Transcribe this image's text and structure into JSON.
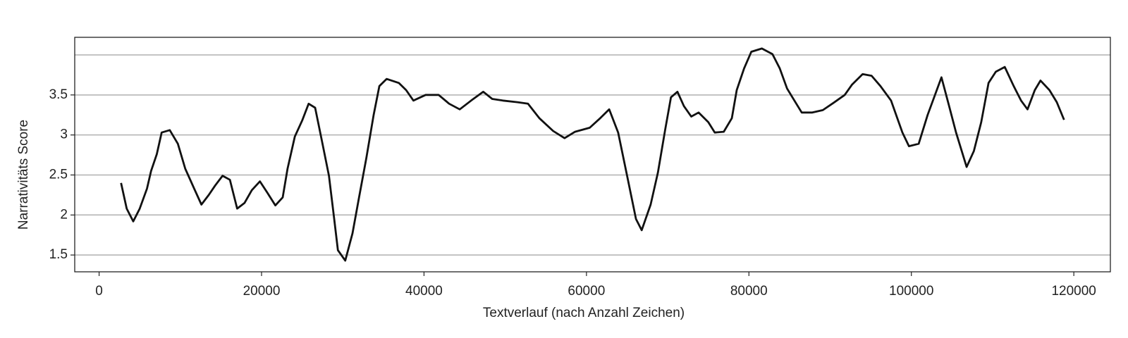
{
  "chart_data": {
    "type": "line",
    "xlabel": "Textverlauf (nach Anzahl Zeichen)",
    "ylabel": "Narrativitäts Score",
    "xlim": [
      -3000,
      124500
    ],
    "ylim": [
      1.29,
      4.22
    ],
    "xticks": [
      0,
      20000,
      40000,
      60000,
      80000,
      100000,
      120000
    ],
    "yticks": [
      1.5,
      2.0,
      2.5,
      3.0,
      3.5
    ],
    "ygrid": [
      1.5,
      2.0,
      2.5,
      3.0,
      3.5,
      4.0
    ],
    "grid": true,
    "color": "#111111",
    "x": [
      2700,
      3400,
      4200,
      5000,
      5900,
      6400,
      7100,
      7700,
      8700,
      9700,
      10600,
      11700,
      12600,
      13500,
      14300,
      15200,
      16100,
      17000,
      17900,
      18800,
      19800,
      20700,
      21700,
      22600,
      23200,
      24100,
      25000,
      25800,
      26600,
      27400,
      28300,
      28900,
      29400,
      30300,
      31200,
      32000,
      32900,
      33800,
      34500,
      35400,
      36900,
      37800,
      38700,
      40200,
      41800,
      43100,
      44400,
      45800,
      47300,
      48400,
      49700,
      51500,
      52800,
      54200,
      55900,
      57300,
      58600,
      60400,
      61700,
      62800,
      63900,
      65000,
      66100,
      66800,
      67900,
      68800,
      69700,
      70400,
      71200,
      72000,
      72900,
      73800,
      75000,
      75800,
      76900,
      77900,
      78500,
      79400,
      80300,
      81600,
      82900,
      83800,
      84700,
      85600,
      86500,
      87800,
      89100,
      90400,
      91800,
      92700,
      94000,
      95100,
      96200,
      97500,
      98900,
      99700,
      100900,
      102000,
      102800,
      103700,
      104600,
      105500,
      106800,
      107700,
      108600,
      109500,
      110400,
      111500,
      112600,
      113500,
      114300,
      115200,
      115900,
      117000,
      117900,
      118800
    ],
    "values": [
      2.4,
      2.08,
      1.92,
      2.08,
      2.33,
      2.55,
      2.76,
      3.03,
      3.06,
      2.89,
      2.58,
      2.33,
      2.13,
      2.25,
      2.37,
      2.49,
      2.44,
      2.08,
      2.15,
      2.31,
      2.42,
      2.28,
      2.12,
      2.22,
      2.58,
      2.98,
      3.18,
      3.39,
      3.34,
      2.94,
      2.49,
      1.99,
      1.56,
      1.43,
      1.77,
      2.22,
      2.71,
      3.25,
      3.61,
      3.7,
      3.65,
      3.56,
      3.43,
      3.5,
      3.5,
      3.39,
      3.32,
      3.43,
      3.54,
      3.45,
      3.43,
      3.41,
      3.39,
      3.21,
      3.05,
      2.96,
      3.04,
      3.09,
      3.21,
      3.32,
      3.03,
      2.49,
      1.95,
      1.81,
      2.13,
      2.53,
      3.07,
      3.47,
      3.54,
      3.36,
      3.23,
      3.28,
      3.16,
      3.03,
      3.04,
      3.21,
      3.56,
      3.83,
      4.04,
      4.08,
      4.01,
      3.83,
      3.58,
      3.43,
      3.28,
      3.28,
      3.31,
      3.4,
      3.5,
      3.63,
      3.76,
      3.74,
      3.61,
      3.43,
      3.03,
      2.86,
      2.89,
      3.25,
      3.47,
      3.72,
      3.38,
      3.03,
      2.6,
      2.8,
      3.16,
      3.65,
      3.79,
      3.85,
      3.61,
      3.43,
      3.32,
      3.56,
      3.68,
      3.56,
      3.41,
      3.19
    ]
  }
}
